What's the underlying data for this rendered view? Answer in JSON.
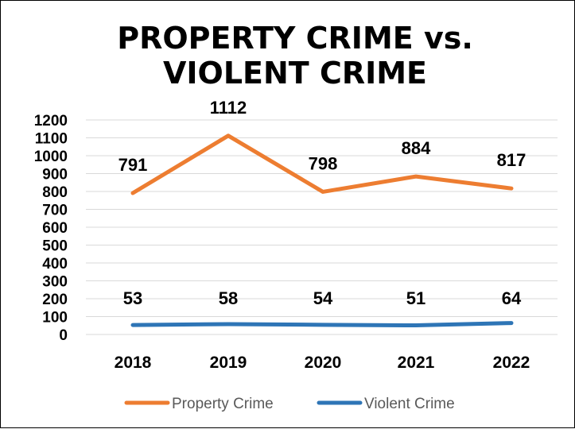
{
  "chart_data": {
    "type": "line",
    "title_lines": [
      "PROPERTY CRIME vs.",
      "VIOLENT CRIME"
    ],
    "categories": [
      "2018",
      "2019",
      "2020",
      "2021",
      "2022"
    ],
    "series": [
      {
        "name": "Property Crime",
        "color": "#ED7D31",
        "values": [
          791,
          1112,
          798,
          884,
          817
        ]
      },
      {
        "name": "Violent Crime",
        "color": "#2E75B6",
        "values": [
          53,
          58,
          54,
          51,
          64
        ]
      }
    ],
    "yticks": [
      "0",
      "100",
      "200",
      "300",
      "400",
      "500",
      "600",
      "700",
      "800",
      "900",
      "1000",
      "1100",
      "1200"
    ],
    "ylim": [
      0,
      1200
    ],
    "grid": true,
    "legend_position": "bottom"
  }
}
